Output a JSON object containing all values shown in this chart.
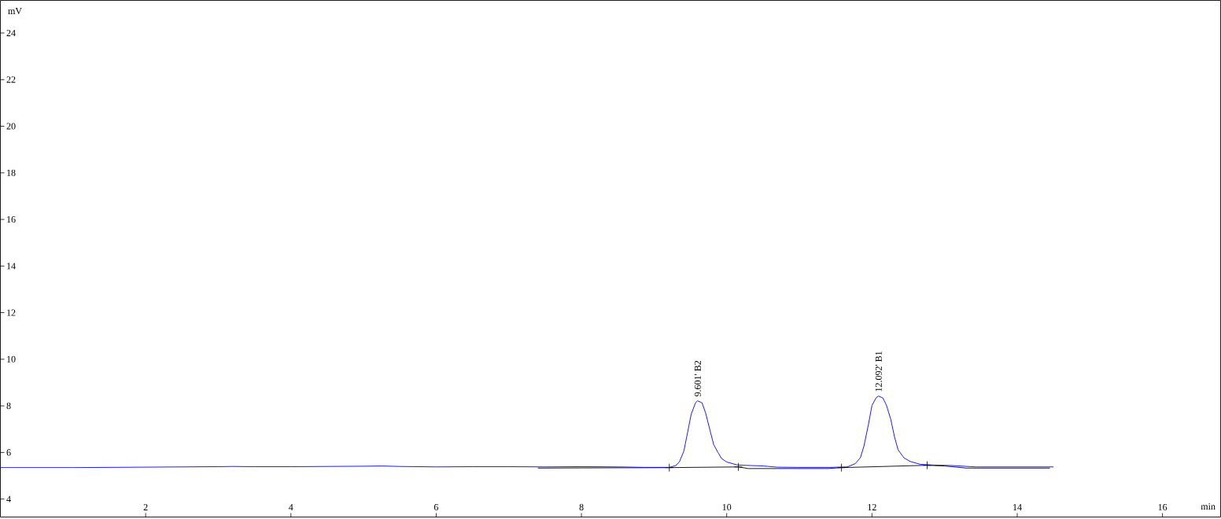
{
  "chart_data": {
    "type": "line",
    "xlabel": "min",
    "ylabel": "mV",
    "xlim": [
      0,
      16.8
    ],
    "ylim": [
      3.23,
      25.4
    ],
    "xticks": [
      2,
      4,
      6,
      8,
      10,
      12,
      14,
      16
    ],
    "yticks": [
      4,
      6,
      8,
      10,
      12,
      14,
      16,
      18,
      20,
      22,
      24
    ],
    "series": [
      {
        "color": "#000000",
        "x": [
          7.4,
          9.21,
          10.16,
          10.3,
          11.4,
          11.58,
          12.76,
          13.0,
          13.3,
          14.45
        ],
        "values": [
          5.33,
          5.35,
          5.38,
          5.31,
          5.31,
          5.35,
          5.45,
          5.42,
          5.33,
          5.33
        ]
      },
      {
        "color": "#0000ff",
        "x": [
          0,
          0.5,
          1.0,
          1.5,
          2.0,
          2.5,
          3.0,
          3.2,
          3.5,
          4.0,
          4.5,
          5.0,
          5.25,
          5.5,
          6.0,
          6.5,
          7.0,
          7.5,
          8.0,
          8.5,
          8.88,
          9.21,
          9.3,
          9.35,
          9.41,
          9.46,
          9.51,
          9.57,
          9.6,
          9.66,
          9.71,
          9.77,
          9.82,
          9.88,
          9.93,
          10.0,
          10.15,
          10.33,
          10.51,
          10.69,
          10.97,
          11.41,
          11.66,
          11.77,
          11.84,
          11.89,
          11.95,
          12.0,
          12.06,
          12.09,
          12.15,
          12.2,
          12.26,
          12.31,
          12.36,
          12.44,
          12.53,
          12.67,
          12.85,
          13.1,
          13.43,
          13.8,
          14.2,
          14.5
        ],
        "values": [
          5.35,
          5.35,
          5.35,
          5.36,
          5.37,
          5.38,
          5.39,
          5.4,
          5.39,
          5.39,
          5.4,
          5.41,
          5.42,
          5.4,
          5.38,
          5.39,
          5.39,
          5.38,
          5.39,
          5.38,
          5.36,
          5.36,
          5.44,
          5.61,
          6.06,
          6.84,
          7.63,
          8.13,
          8.22,
          8.13,
          7.69,
          6.95,
          6.34,
          6.0,
          5.74,
          5.59,
          5.46,
          5.44,
          5.42,
          5.37,
          5.36,
          5.36,
          5.38,
          5.52,
          5.77,
          6.28,
          7.18,
          8.02,
          8.36,
          8.42,
          8.34,
          8.02,
          7.41,
          6.67,
          6.11,
          5.77,
          5.61,
          5.49,
          5.46,
          5.44,
          5.38,
          5.38,
          5.38,
          5.38
        ]
      },
      {
        "type": "scatter",
        "color": "#000000",
        "marker": "cross",
        "x": [
          9.21,
          10.16,
          11.58,
          12.76
        ],
        "values": [
          5.35,
          5.38,
          5.35,
          5.45
        ]
      }
    ],
    "annotations": [
      {
        "text": "9.601' B2",
        "x": 9.601,
        "y": 8.22
      },
      {
        "text": "12.092' B1",
        "x": 12.092,
        "y": 8.42
      }
    ]
  }
}
